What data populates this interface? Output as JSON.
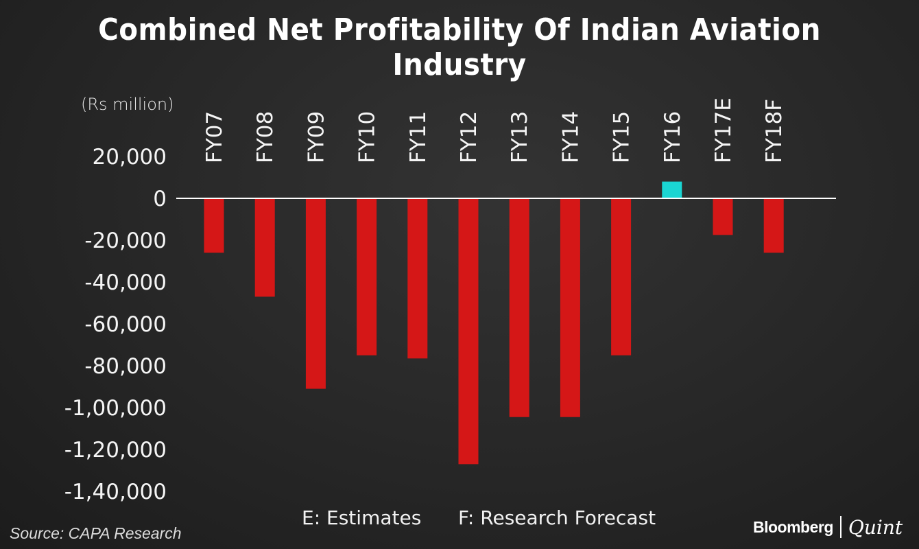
{
  "header": {
    "title": "Combined Net Profitability Of Indian Aviation Industry"
  },
  "footer": {
    "note_estimates": "E: Estimates",
    "note_forecast": "F: Research Forecast",
    "source": "Source: CAPA Research",
    "brand_left": "Bloomberg",
    "brand_right": "Quint"
  },
  "colors": {
    "negative": "#d51717",
    "positive": "#1ad6d3",
    "zero_line": "#ffffff"
  },
  "chart_data": {
    "type": "bar",
    "title": "Combined Net Profitability Of Indian Aviation Industry",
    "unit_label": "(Rs million)",
    "xlabel": "",
    "ylabel": "(Rs million)",
    "ylim": [
      -140000,
      20000
    ],
    "grid": false,
    "legend": "none",
    "categories": [
      "FY07",
      "FY08",
      "FY09",
      "FY10",
      "FY11",
      "FY12",
      "FY13",
      "FY14",
      "FY15",
      "FY16",
      "FY17E",
      "FY18F"
    ],
    "values": [
      -26000,
      -47000,
      -91000,
      -75000,
      -76500,
      -127000,
      -104500,
      -104500,
      -75000,
      8000,
      -17500,
      -26000
    ],
    "yticks": [
      20000,
      0,
      -20000,
      -40000,
      -60000,
      -80000,
      -100000,
      -120000,
      -140000
    ],
    "ytick_labels": [
      "20,000",
      "0",
      "-20,000",
      "-40,000",
      "-60,000",
      "-80,000",
      "-1,00,000",
      "-1,20,000",
      "-1,40,000"
    ],
    "annotations": [
      "E: Estimates",
      "F: Research Forecast"
    ]
  }
}
